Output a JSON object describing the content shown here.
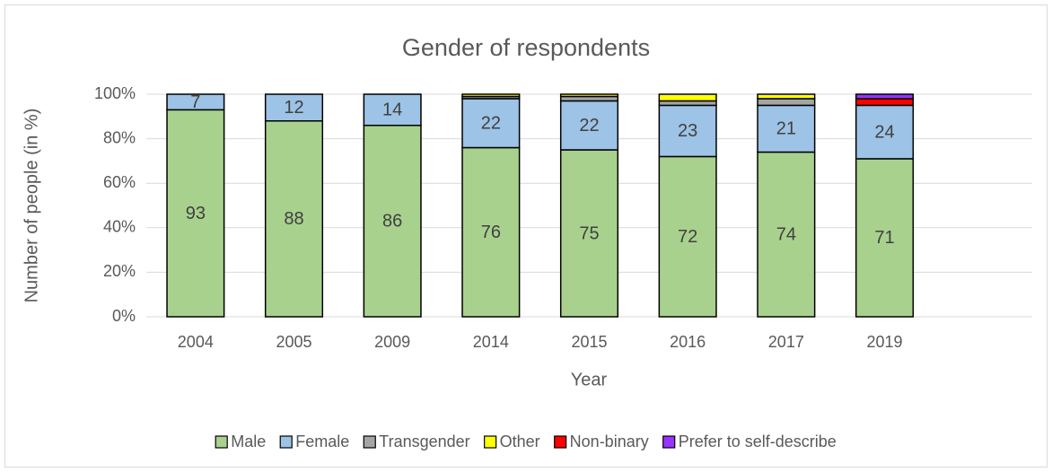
{
  "chart_data": {
    "type": "stacked_bar",
    "title": "Gender of respondents",
    "x_label": "Year",
    "y_label": "Number of people (in %)",
    "categories": [
      "2004",
      "2005",
      "2009",
      "2014",
      "2015",
      "2016",
      "2017",
      "2019",
      null
    ],
    "series": [
      {
        "name": "Male",
        "color": "#a9d18e",
        "show_labels": true,
        "values": [
          93,
          88,
          86,
          76,
          75,
          72,
          74,
          71,
          null
        ]
      },
      {
        "name": "Female",
        "color": "#9dc3e6",
        "show_labels": true,
        "values": [
          7,
          12,
          14,
          22,
          22,
          23,
          21,
          24,
          null
        ]
      },
      {
        "name": "Transgender",
        "color": "#a5a5a5",
        "show_labels": false,
        "values": [
          0,
          0,
          0,
          1,
          2,
          2,
          3,
          0,
          null
        ]
      },
      {
        "name": "Other",
        "color": "#ffff00",
        "show_labels": false,
        "values": [
          0,
          0,
          0,
          1,
          1,
          3,
          2,
          0,
          null
        ]
      },
      {
        "name": "Non-binary",
        "color": "#ff0000",
        "show_labels": false,
        "values": [
          0,
          0,
          0,
          0,
          0,
          0,
          0,
          3,
          null
        ]
      },
      {
        "name": "Prefer to self-describe",
        "color": "#9933ff",
        "show_labels": false,
        "values": [
          0,
          0,
          0,
          0,
          0,
          0,
          0,
          2,
          null
        ]
      }
    ],
    "ylim": [
      0,
      100
    ],
    "yticks": [
      {
        "value": 0,
        "label": "0%"
      },
      {
        "value": 20,
        "label": "20%"
      },
      {
        "value": 40,
        "label": "40%"
      },
      {
        "value": 60,
        "label": "60%"
      },
      {
        "value": 80,
        "label": "80%"
      },
      {
        "value": 100,
        "label": "100%"
      }
    ],
    "grid": true,
    "legend": "bottom"
  }
}
